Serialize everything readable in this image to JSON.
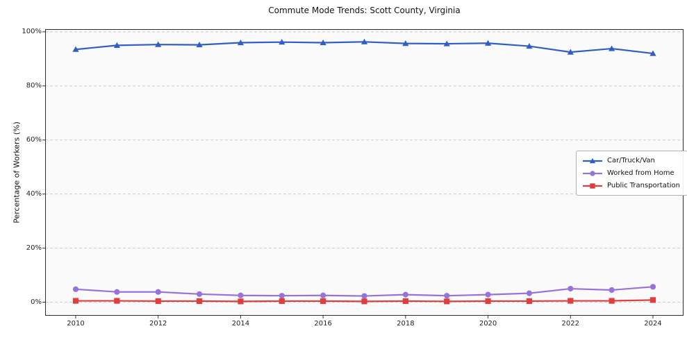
{
  "chart_data": {
    "type": "line",
    "title": "Commute Mode Trends: Scott County, Virginia",
    "xlabel": "",
    "ylabel": "Percentage of Workers (%)",
    "x": [
      2010,
      2011,
      2012,
      2013,
      2014,
      2015,
      2016,
      2017,
      2018,
      2019,
      2020,
      2021,
      2022,
      2023,
      2024
    ],
    "x_ticks": [
      {
        "label": "2010",
        "value": 2010
      },
      {
        "label": "2012",
        "value": 2012
      },
      {
        "label": "2014",
        "value": 2014
      },
      {
        "label": "2016",
        "value": 2016
      },
      {
        "label": "2018",
        "value": 2018
      },
      {
        "label": "2020",
        "value": 2020
      },
      {
        "label": "2022",
        "value": 2022
      },
      {
        "label": "2024",
        "value": 2024
      }
    ],
    "y_ticks": [
      {
        "label": "0%",
        "value": 0
      },
      {
        "label": "20%",
        "value": 20
      },
      {
        "label": "40%",
        "value": 40
      },
      {
        "label": "60%",
        "value": 60
      },
      {
        "label": "80%",
        "value": 80
      },
      {
        "label": "100%",
        "value": 100
      }
    ],
    "ylim": [
      -5,
      101
    ],
    "grid": "horizontal-dashed",
    "legend_position": "center-right",
    "series": [
      {
        "name": "Car/Truck/Van",
        "color": "#2f5fc4",
        "marker": "triangle",
        "values": [
          93.5,
          95.0,
          95.3,
          95.2,
          96.0,
          96.2,
          96.0,
          96.3,
          95.7,
          95.6,
          95.8,
          94.7,
          92.5,
          93.8,
          92.0
        ]
      },
      {
        "name": "Worked from Home",
        "color": "#9673db",
        "marker": "circle",
        "values": [
          4.8,
          3.8,
          3.8,
          3.0,
          2.5,
          2.4,
          2.5,
          2.3,
          2.8,
          2.4,
          2.8,
          3.3,
          5.0,
          4.5,
          5.7
        ]
      },
      {
        "name": "Public Transportation",
        "color": "#e03e3e",
        "marker": "square",
        "values": [
          0.5,
          0.5,
          0.4,
          0.4,
          0.3,
          0.4,
          0.4,
          0.3,
          0.4,
          0.3,
          0.4,
          0.4,
          0.5,
          0.5,
          0.8
        ]
      }
    ]
  }
}
